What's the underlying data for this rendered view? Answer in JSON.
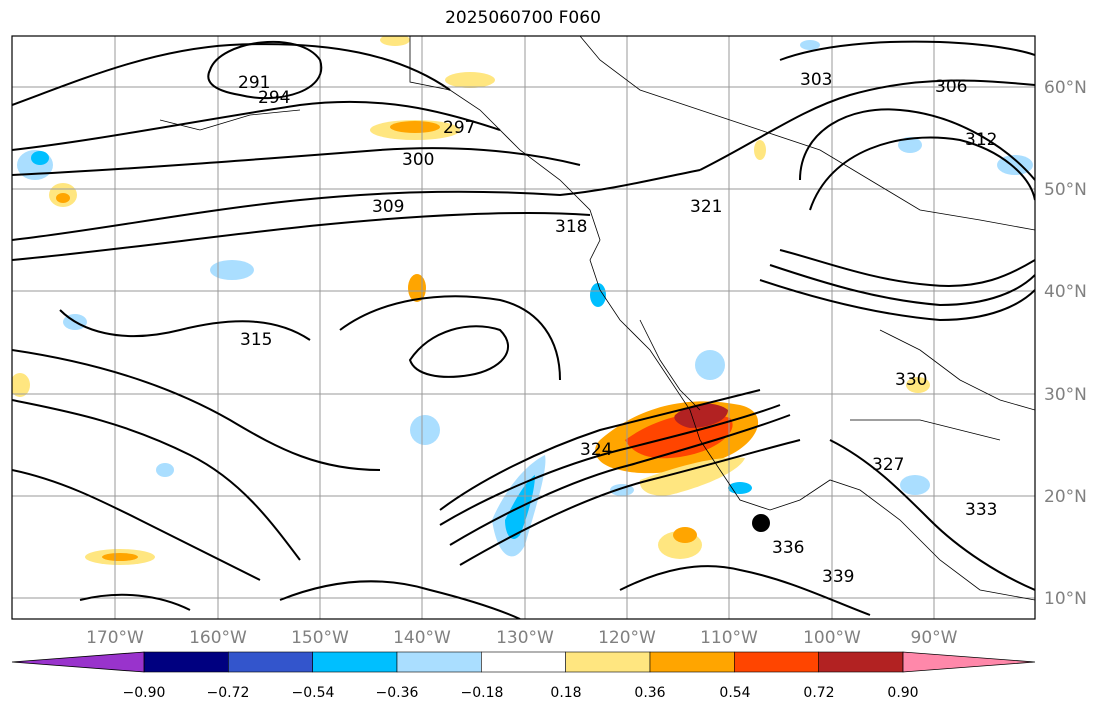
{
  "title": "2025060700 F060",
  "map": {
    "lon_ticks": [
      "170°W",
      "160°W",
      "150°W",
      "140°W",
      "130°W",
      "120°W",
      "110°W",
      "100°W",
      "90°W"
    ],
    "lat_ticks": [
      "60°N",
      "50°N",
      "40°N",
      "30°N",
      "20°N",
      "10°N"
    ],
    "grid": true,
    "marker": "storm-center-dot"
  },
  "contour_labels": [
    "291",
    "294",
    "297",
    "300",
    "303",
    "306",
    "309",
    "312",
    "315",
    "318",
    "321",
    "324",
    "327",
    "330",
    "333",
    "336",
    "339"
  ],
  "colorbar": {
    "ticks": [
      "−0.90",
      "−0.72",
      "−0.54",
      "−0.36",
      "−0.18",
      "0.18",
      "0.36",
      "0.54",
      "0.72",
      "0.90"
    ],
    "colors": [
      "#9933cc",
      "#000080",
      "#3355cc",
      "#00bfff",
      "#aadeff",
      "#ffffff",
      "#ffe680",
      "#ffa500",
      "#ff4500",
      "#b22222",
      "#ff88aa"
    ]
  }
}
